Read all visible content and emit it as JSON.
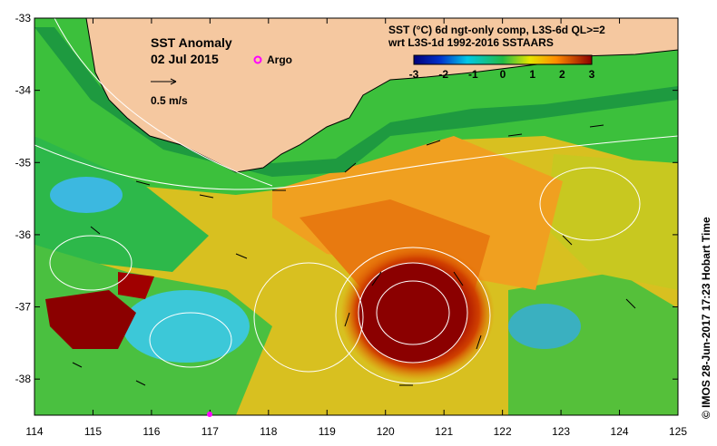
{
  "map": {
    "title": "SST Anomaly",
    "date": "02 Jul 2015",
    "legend_argo": "Argo",
    "scale_label": "0.5 m/s",
    "header_line1": "SST (°C) 6d ngt-only comp, L3S-6d QL>=2",
    "header_line2": "wrt L3S-1d 1992-2016 SSTAARS",
    "credit": "© IMOS 28-Jun-2017 17:23 Hobart Time",
    "lon_ticks": [
      "114",
      "115",
      "116",
      "117",
      "118",
      "119",
      "120",
      "121",
      "122",
      "123",
      "124",
      "125"
    ],
    "lat_ticks": [
      "-33",
      "-34",
      "-35",
      "-36",
      "-37",
      "-38"
    ],
    "lon_range": [
      114,
      125
    ],
    "lat_range": [
      -38.5,
      -33
    ],
    "colorbar": {
      "ticks": [
        "-3",
        "-2",
        "-1",
        "0",
        "1",
        "2",
        "3"
      ],
      "range": [
        -3,
        3
      ]
    },
    "colors": {
      "land": "#f5c8a0",
      "warm_core": "#8b0000",
      "argo": "#ff00ff"
    }
  }
}
